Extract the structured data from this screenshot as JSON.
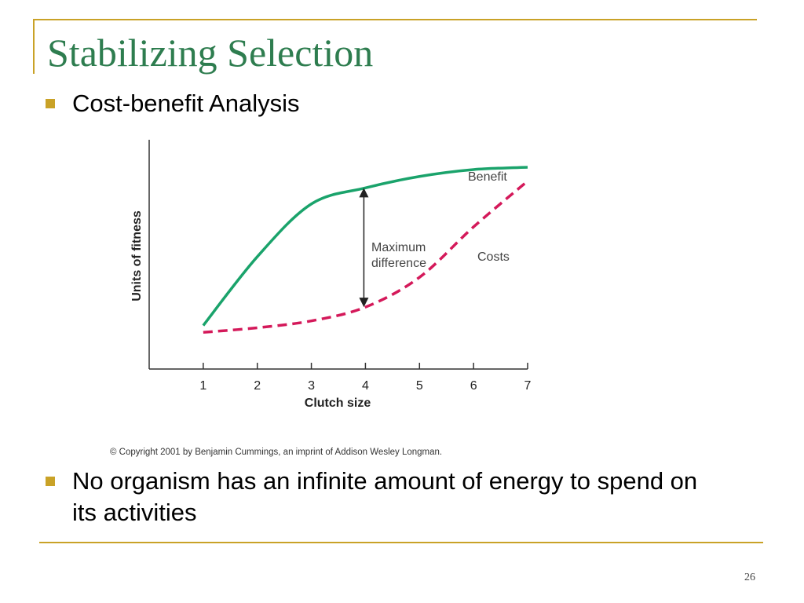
{
  "slide": {
    "title": "Stabilizing Selection",
    "bullets": [
      "Cost-benefit Analysis",
      "No organism has an infinite amount of energy to spend on its activities"
    ],
    "page_number": "26",
    "copyright": "© Copyright 2001 by Benjamin Cummings, an imprint of Addison Wesley Longman.",
    "colors": {
      "accent": "#c9a227",
      "title": "#2e7d4f"
    }
  },
  "chart_data": {
    "type": "line",
    "title": "",
    "xlabel": "Clutch size",
    "ylabel": "Units of fitness",
    "x": [
      1,
      2,
      3,
      4,
      5,
      6,
      7
    ],
    "xlim": [
      0.0,
      7.0
    ],
    "ylim": [
      0,
      10
    ],
    "grid": false,
    "series": [
      {
        "name": "Benefit",
        "style": "solid",
        "color": "#1aa36b",
        "values": [
          1.9,
          4.9,
          7.2,
          7.9,
          8.4,
          8.7,
          8.8
        ]
      },
      {
        "name": "Costs",
        "style": "dashed",
        "color": "#d4195a",
        "values": [
          1.6,
          1.8,
          2.1,
          2.7,
          4.0,
          6.2,
          8.2
        ]
      }
    ],
    "annotations": [
      {
        "text": "Maximum difference",
        "lines": [
          "Maximum",
          "difference"
        ],
        "x": 4,
        "arrow_between": [
          "Costs",
          "Benefit"
        ]
      }
    ]
  }
}
